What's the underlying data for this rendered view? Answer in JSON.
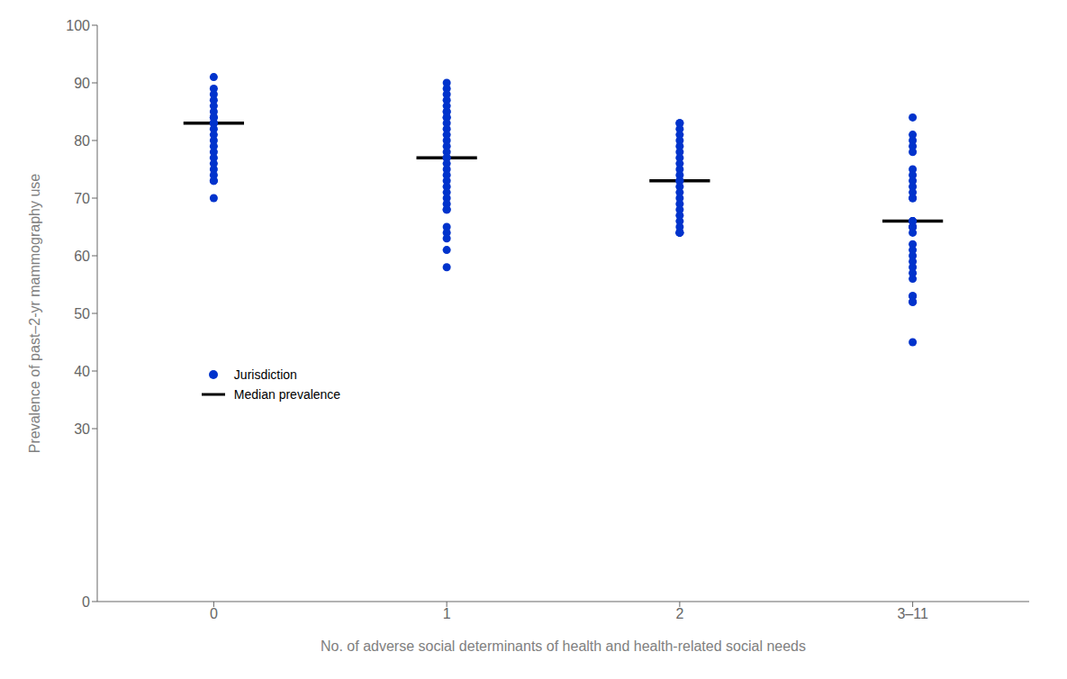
{
  "chart_data": {
    "type": "scatter",
    "xlabel": "No. of adverse social determinants of health and health-related social needs",
    "ylabel": "Prevalence of past–2-yr mammography use",
    "categories": [
      "0",
      "1",
      "2",
      "3–11"
    ],
    "series": [
      {
        "name": "Jurisdiction",
        "type": "scatter",
        "marker": "circle",
        "color": "#0033CC",
        "values": [
          [
            91,
            89,
            88,
            87,
            86,
            85,
            84,
            84,
            83,
            83,
            83,
            82,
            81,
            80,
            79,
            78,
            77,
            76,
            75,
            74,
            73,
            73,
            70
          ],
          [
            90,
            89,
            88,
            87,
            86,
            85,
            85,
            84,
            84,
            83,
            82,
            81,
            80,
            79,
            78,
            77,
            77,
            76,
            75,
            74,
            73,
            72,
            71,
            70,
            69,
            68,
            68,
            65,
            64,
            63,
            61,
            58
          ],
          [
            83,
            83,
            82,
            81,
            80,
            79,
            78,
            77,
            76,
            75,
            74,
            73,
            73,
            72,
            71,
            70,
            69,
            68,
            67,
            66,
            65,
            64,
            64,
            64
          ],
          [
            84,
            81,
            80,
            79,
            78,
            75,
            74,
            73,
            72,
            71,
            70,
            70,
            66,
            66,
            66,
            65,
            65,
            65,
            64,
            62,
            61,
            60,
            59,
            58,
            57,
            56,
            53,
            53,
            52,
            52,
            45
          ]
        ]
      },
      {
        "name": "Median prevalence",
        "type": "median",
        "color": "#000000",
        "values": [
          83,
          77,
          73,
          66
        ]
      }
    ],
    "ylim": [
      0,
      100
    ],
    "yticks": [
      0,
      30,
      40,
      50,
      60,
      70,
      80,
      90,
      100
    ],
    "legend": "lower left"
  }
}
